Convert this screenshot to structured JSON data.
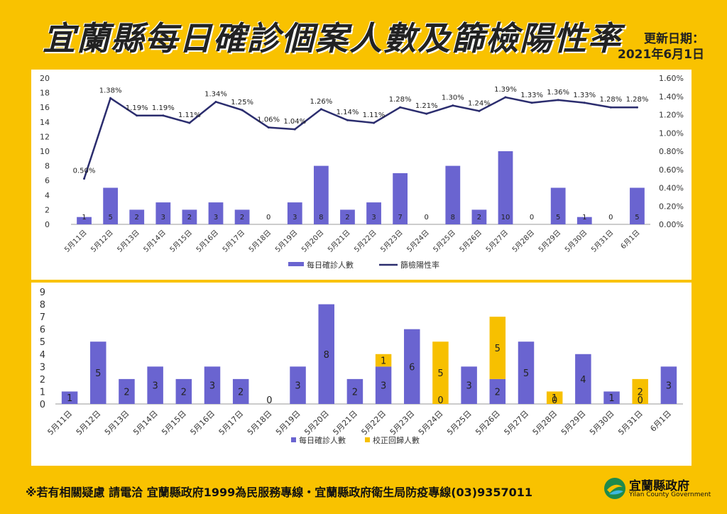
{
  "header": {
    "title": "宜蘭縣每日確診個案人數及篩檢陽性率",
    "update_label": "更新日期：",
    "update_date": "2021年6月1日"
  },
  "footer": {
    "note": "※若有相關疑慮 請電洽  宜蘭縣政府1999為民服務專線・宜蘭縣政府衛生局防疫專線(03)9357011",
    "logo_name": "宜蘭縣政府",
    "logo_en": "Yilan County Government"
  },
  "colors": {
    "bar": "#6a64d0",
    "line": "#2b2d6e",
    "corrected": "#f7c000"
  },
  "chart_data": [
    {
      "type": "bar",
      "categories": [
        "5月11日",
        "5月12日",
        "5月13日",
        "5月14日",
        "5月15日",
        "5月16日",
        "5月17日",
        "5月18日",
        "5月19日",
        "5月20日",
        "5月21日",
        "5月22日",
        "5月23日",
        "5月24日",
        "5月25日",
        "5月26日",
        "5月27日",
        "5月28日",
        "5月29日",
        "5月30日",
        "5月31日",
        "6月1日"
      ],
      "series": [
        {
          "name": "每日確診人數",
          "type": "bar",
          "axis": "left",
          "values": [
            1,
            5,
            2,
            3,
            2,
            3,
            2,
            0,
            3,
            8,
            2,
            3,
            7,
            0,
            8,
            2,
            10,
            0,
            5,
            1,
            0,
            5
          ]
        },
        {
          "name": "篩檢陽性率",
          "type": "line",
          "axis": "right",
          "values": [
            0.5,
            1.38,
            1.19,
            1.19,
            1.11,
            1.34,
            1.25,
            1.06,
            1.04,
            1.26,
            1.14,
            1.11,
            1.28,
            1.21,
            1.3,
            1.24,
            1.39,
            1.33,
            1.36,
            1.33,
            1.28,
            1.28
          ],
          "labels": [
            "0.50%",
            "1.38%",
            "1.19%",
            "1.19%",
            "1.11%",
            "1.34%",
            "1.25%",
            "1.06%",
            "1.04%",
            "1.26%",
            "1.14%",
            "1.11%",
            "1.28%",
            "1.21%",
            "1.30%",
            "1.24%",
            "1.39%",
            "1.33%",
            "1.36%",
            "1.33%",
            "1.28%",
            "1.28%"
          ]
        }
      ],
      "y_left": {
        "ylim": [
          0,
          20
        ],
        "ticks": [
          "0",
          "2",
          "4",
          "6",
          "8",
          "10",
          "12",
          "14",
          "16",
          "18",
          "20"
        ]
      },
      "y_right": {
        "ylim": [
          0,
          1.6
        ],
        "ticks": [
          "0.00%",
          "0.20%",
          "0.40%",
          "0.60%",
          "0.80%",
          "1.00%",
          "1.20%",
          "1.40%",
          "1.60%"
        ]
      },
      "legend_position": "bottom"
    },
    {
      "type": "bar",
      "stacked": true,
      "categories": [
        "5月11日",
        "5月12日",
        "5月13日",
        "5月14日",
        "5月15日",
        "5月16日",
        "5月17日",
        "5月18日",
        "5月19日",
        "5月20日",
        "5月21日",
        "5月22日",
        "5月23日",
        "5月24日",
        "5月25日",
        "5月26日",
        "5月27日",
        "5月28日",
        "5月29日",
        "5月30日",
        "5月31日",
        "6月1日"
      ],
      "series": [
        {
          "name": "每日確診人數",
          "values": [
            1,
            5,
            2,
            3,
            2,
            3,
            2,
            0,
            3,
            8,
            2,
            3,
            6,
            0,
            3,
            2,
            5,
            0,
            4,
            1,
            0,
            3
          ]
        },
        {
          "name": "校正回歸人數",
          "values": [
            0,
            0,
            0,
            0,
            0,
            0,
            0,
            0,
            0,
            0,
            0,
            1,
            0,
            5,
            0,
            5,
            0,
            1,
            0,
            0,
            2,
            0
          ]
        }
      ],
      "y": {
        "ylim": [
          0,
          9
        ],
        "ticks": [
          "0",
          "1",
          "2",
          "3",
          "4",
          "5",
          "6",
          "7",
          "8",
          "9"
        ]
      },
      "legend_position": "bottom"
    }
  ]
}
